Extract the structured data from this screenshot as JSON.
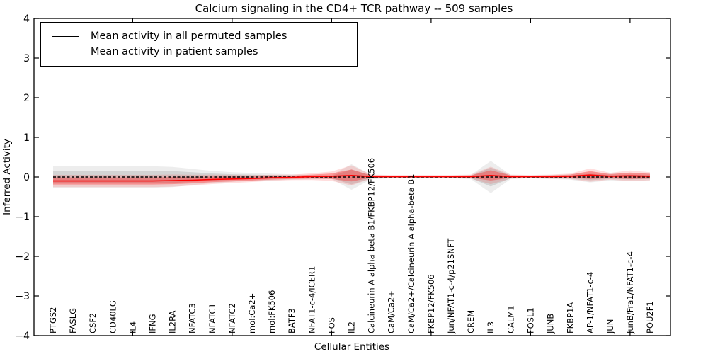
{
  "figure": {
    "background": "#ffffff"
  },
  "chart_data": {
    "type": "line",
    "title": "Calcium signaling in the CD4+ TCR pathway -- 509 samples",
    "xlabel": "Cellular Entities",
    "ylabel": "Inferred Activity",
    "ylim": [
      -4,
      4
    ],
    "yticks": [
      4,
      3,
      2,
      1,
      0,
      -1,
      -2,
      -3,
      -4
    ],
    "grid": false,
    "legend_position": "upper left",
    "tick_direction": "in",
    "xtick_indices": [
      4,
      9,
      14,
      19,
      24,
      29
    ],
    "categories": [
      "PTGS2",
      "FASLG",
      "CSF2",
      "CD40LG",
      "IL4",
      "IFNG",
      "IL2RA",
      "NFATC3",
      "NFATC1",
      "NFATC2",
      "mol:Ca2+",
      "mol:FK506",
      "BATF3",
      "NFAT1-c-4/ICER1",
      "FOS",
      "IL2",
      "Calcineurin A alpha-beta B1/FKBP12/FK506",
      "CaM/Ca2+",
      "CaM/Ca2+/Calcineurin A alpha-beta B1",
      "FKBP12/FK506",
      "Jun/NFAT1-c-4/p21SNFT",
      "CREM",
      "IL3",
      "CALM1",
      "FOSL1",
      "JUNB",
      "FKBP1A",
      "AP-1/NFAT1-c-4",
      "JUN",
      "JunB/Fra1/NFAT1-c-4",
      "POU2F1"
    ],
    "series": [
      {
        "name": "Mean activity in all permuted samples",
        "color": "#000000",
        "line_style": "dashed",
        "band_color": "#777777",
        "band_alpha_inner": 0.22,
        "band_alpha_outer": 0.13,
        "values": [
          0,
          0,
          0,
          0,
          0,
          0,
          0,
          0,
          0,
          0,
          0,
          0,
          0,
          0,
          0,
          0,
          0,
          0,
          0,
          0,
          0,
          0,
          0,
          0,
          0,
          0,
          0,
          0,
          0,
          0,
          0
        ],
        "band_half_widths": [
          0.16,
          0.16,
          0.16,
          0.16,
          0.16,
          0.16,
          0.15,
          0.12,
          0.09,
          0.07,
          0.06,
          0.05,
          0.04,
          0.035,
          0.03,
          0.19,
          0.03,
          0.02,
          0.02,
          0.02,
          0.02,
          0.03,
          0.24,
          0.03,
          0.02,
          0.03,
          0.04,
          0.08,
          0.05,
          0.06,
          0.05
        ]
      },
      {
        "name": "Mean activity in patient samples",
        "color": "#ff0000",
        "line_style": "solid",
        "band_color": "#ff0000",
        "band_alpha_inner": 0.3,
        "band_alpha_outer": 0.13,
        "values": [
          -0.1,
          -0.1,
          -0.1,
          -0.1,
          -0.1,
          -0.1,
          -0.09,
          -0.08,
          -0.06,
          -0.05,
          -0.04,
          -0.02,
          -0.01,
          0.01,
          0.02,
          0.04,
          0.01,
          0.01,
          0.01,
          0.01,
          0.01,
          0.01,
          0.04,
          0.01,
          0.01,
          0.01,
          0.02,
          0.05,
          0.02,
          0.03,
          0.02
        ],
        "band_half_widths": [
          0.09,
          0.09,
          0.09,
          0.09,
          0.09,
          0.09,
          0.09,
          0.08,
          0.07,
          0.06,
          0.05,
          0.045,
          0.04,
          0.05,
          0.07,
          0.15,
          0.03,
          0.025,
          0.025,
          0.025,
          0.025,
          0.03,
          0.13,
          0.03,
          0.025,
          0.03,
          0.04,
          0.1,
          0.05,
          0.08,
          0.06
        ]
      }
    ],
    "band_outer_scale": 1.7
  },
  "colors": {
    "axis": "#000000",
    "background": "#ffffff",
    "permuted_line": "#000000",
    "patient_line": "#ff0000"
  }
}
